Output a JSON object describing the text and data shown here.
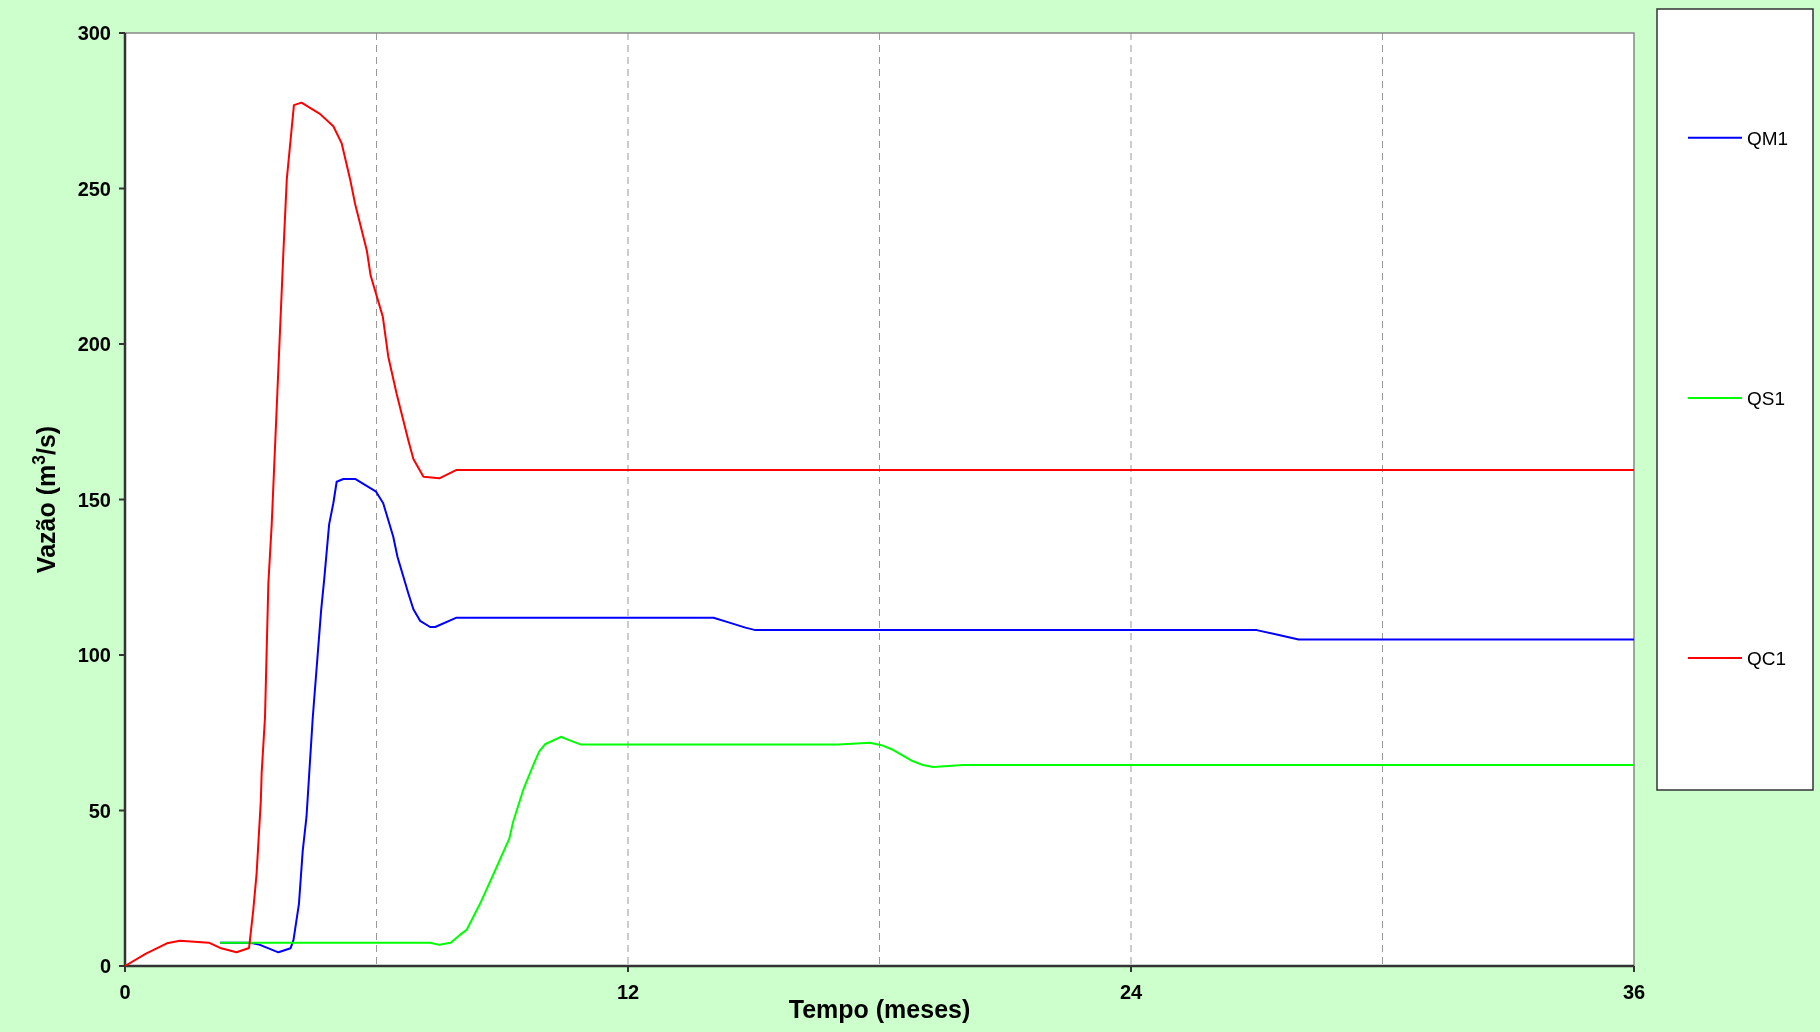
{
  "chart_data": {
    "type": "line",
    "xlabel": "Tempo (meses)",
    "ylabel": "Vazão (m$^{3}$/s)",
    "xlim": [
      0,
      36
    ],
    "ylim": [
      0,
      300
    ],
    "xticks": [
      0,
      {
        "value": 6,
        "label": null
      },
      12,
      {
        "value": 18,
        "label": null
      },
      24,
      {
        "value": 30,
        "label": null
      },
      36
    ],
    "yticks": [
      0,
      50,
      100,
      150,
      200,
      250,
      300
    ],
    "grid": "x",
    "legend": "right",
    "line_style": "solid",
    "marker": "none",
    "series": [
      {
        "name": "QM1",
        "color": "#0000ff",
        "x": [
          2.27,
          3,
          3.22,
          3.66,
          3.95,
          4.02,
          4.15,
          4.24,
          4.33,
          4.48,
          4.68,
          4.75,
          4.87,
          4.97,
          5.05,
          5.21,
          5.49,
          5.99,
          6.16,
          6.4,
          6.5,
          6.76,
          6.88,
          7.04,
          7.28,
          7.4,
          7.91,
          14.04,
          14.4,
          14.8,
          15.04,
          27,
          27.5,
          28,
          36
        ],
        "values": [
          7.5,
          7.5,
          6.8,
          4.4,
          5.7,
          8.4,
          20,
          37,
          48,
          80,
          114.5,
          124,
          142,
          148.8,
          155.7,
          156.6,
          156.6,
          152.5,
          148.8,
          138,
          131.6,
          119.8,
          114.7,
          111,
          109,
          109,
          112,
          112,
          110.5,
          108.8,
          108,
          108,
          106.5,
          105,
          105
        ]
      },
      {
        "name": "QS1",
        "color": "#00ff00",
        "x": [
          2.27,
          7.28,
          7.5,
          7.77,
          7.99,
          8.15,
          8.47,
          8.79,
          9.17,
          9.26,
          9.5,
          9.74,
          9.88,
          10.02,
          10.4,
          10.58,
          10.88,
          17.02,
          17.77,
          18.05,
          18.29,
          18.77,
          19.04,
          19.28,
          20,
          36
        ],
        "values": [
          7.5,
          7.5,
          6.8,
          7.5,
          10,
          11.6,
          20,
          29.5,
          41,
          46.4,
          56.6,
          64.6,
          68.9,
          71.3,
          73.7,
          72.7,
          71.2,
          71.2,
          71.8,
          71,
          69.7,
          66,
          64.6,
          64,
          64.6,
          64.6
        ]
      },
      {
        "name": "QC1",
        "color": "#ff0000",
        "x": [
          0,
          0.5,
          1,
          1.31,
          2,
          2.27,
          2.66,
          2.96,
          3.06,
          3.14,
          3.24,
          3.26,
          3.34,
          3.42,
          3.5,
          3.78,
          3.86,
          3.95,
          4.03,
          4.21,
          4.65,
          4.97,
          5.17,
          5.37,
          5.49,
          5.77,
          5.86,
          6.15,
          6.28,
          6.48,
          6.76,
          6.88,
          7.12,
          7.5,
          7.91,
          36
        ],
        "values": [
          0,
          4,
          7.3,
          8.1,
          7.5,
          5.8,
          4.4,
          5.8,
          18,
          29.8,
          53,
          62,
          80,
          123,
          142,
          230,
          253,
          265.6,
          276.8,
          277.6,
          274,
          270,
          264.5,
          253,
          245,
          230,
          222,
          208.8,
          196,
          184,
          169,
          163,
          157.3,
          156.8,
          159.5,
          159.5
        ]
      }
    ]
  }
}
